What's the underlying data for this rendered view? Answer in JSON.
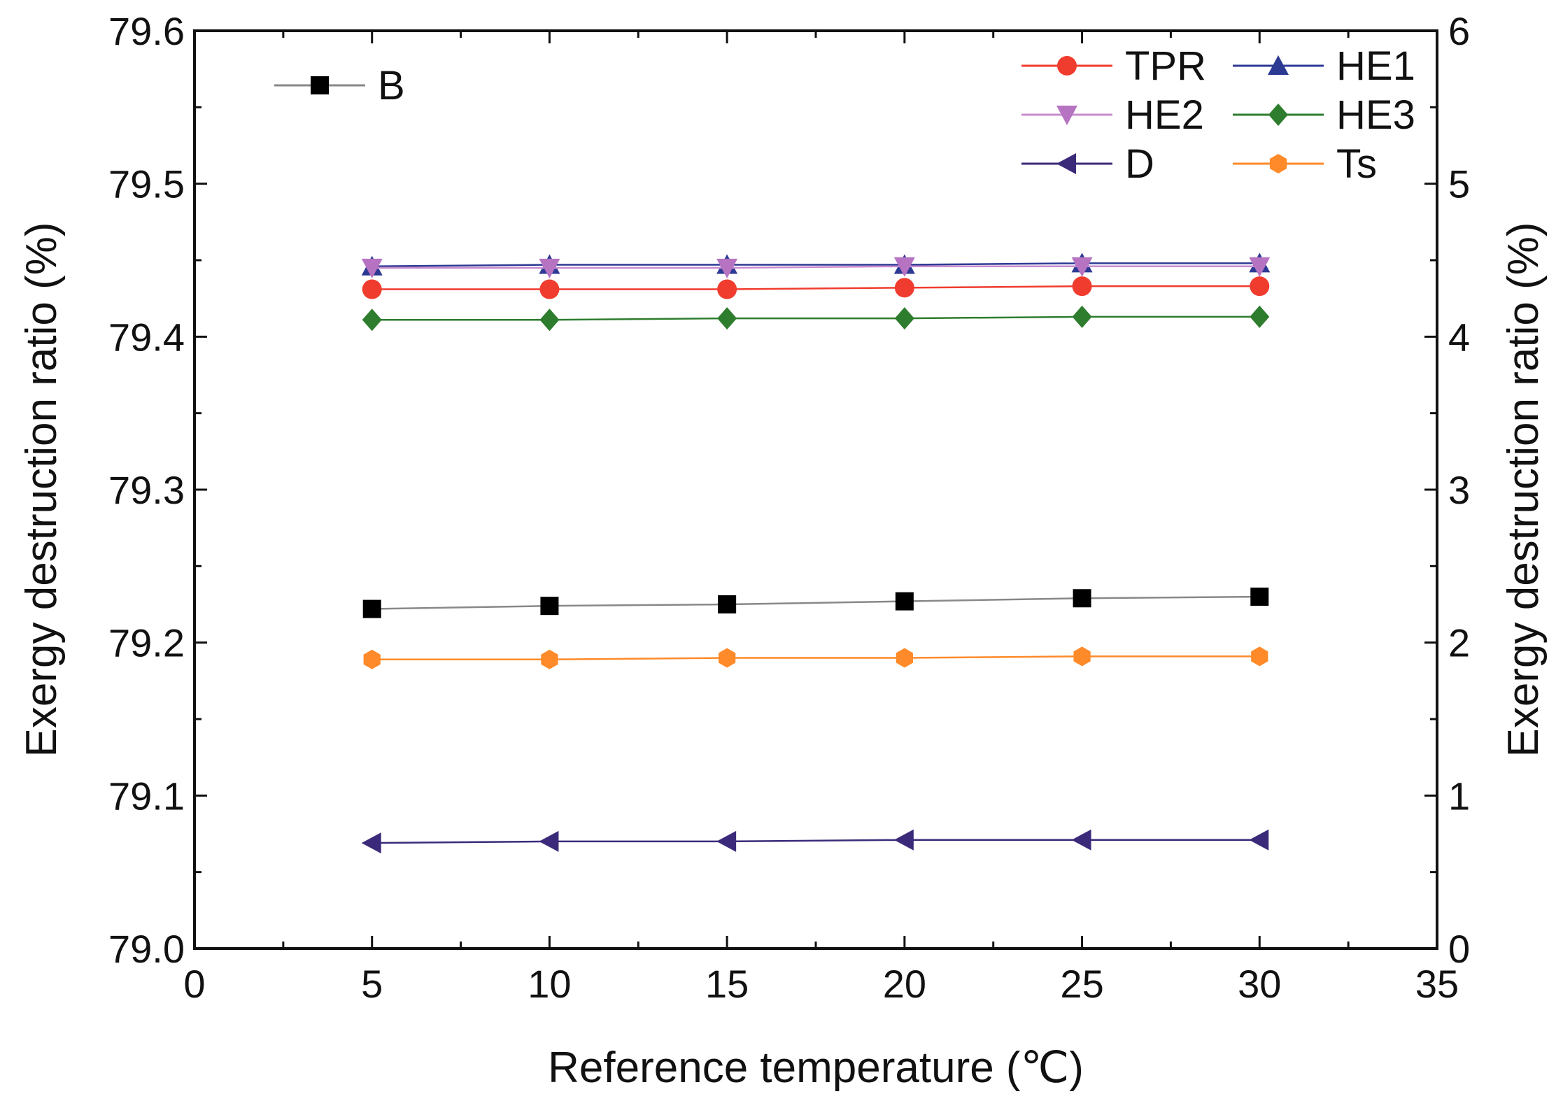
{
  "chart_data": {
    "type": "line",
    "xlabel": "Reference temperature (℃)",
    "ylabel_left": "Exergy destruction ratio (%)",
    "ylabel_right": "Exergy destruction ratio (%)",
    "x_axis": {
      "min": 0,
      "max": 35,
      "ticks": [
        0,
        5,
        10,
        15,
        20,
        25,
        30,
        35
      ],
      "labels": [
        "0",
        "5",
        "10",
        "15",
        "20",
        "25",
        "30",
        "35"
      ]
    },
    "y_left_axis": {
      "min": 79.0,
      "max": 79.6,
      "ticks": [
        79.0,
        79.1,
        79.2,
        79.3,
        79.4,
        79.5,
        79.6
      ],
      "labels": [
        "79.0",
        "79.1",
        "79.2",
        "79.3",
        "79.4",
        "79.5",
        "79.6"
      ]
    },
    "y_right_axis": {
      "min": 0,
      "max": 6,
      "ticks": [
        0,
        1,
        2,
        3,
        4,
        5,
        6
      ],
      "labels": [
        "0",
        "1",
        "2",
        "3",
        "4",
        "5",
        "6"
      ]
    },
    "x": [
      5,
      10,
      15,
      20,
      25,
      30
    ],
    "series": [
      {
        "name": "B",
        "axis": "left",
        "color": "#888888",
        "marker_color": "#000000",
        "marker": "square",
        "values": [
          79.222,
          79.224,
          79.225,
          79.227,
          79.229,
          79.23
        ]
      },
      {
        "name": "TPR",
        "axis": "right",
        "color": "#f03c2e",
        "marker_color": "#f03c2e",
        "marker": "circle",
        "values": [
          4.31,
          4.31,
          4.31,
          4.32,
          4.33,
          4.33
        ]
      },
      {
        "name": "HE1",
        "axis": "right",
        "color": "#2d3a94",
        "marker_color": "#2d3a94",
        "marker": "triangle-up",
        "values": [
          4.46,
          4.47,
          4.47,
          4.47,
          4.48,
          4.48
        ]
      },
      {
        "name": "HE2",
        "axis": "right",
        "color": "#c98bcf",
        "marker_color": "#b673c2",
        "marker": "triangle-down",
        "values": [
          4.45,
          4.45,
          4.45,
          4.46,
          4.46,
          4.46
        ]
      },
      {
        "name": "HE3",
        "axis": "right",
        "color": "#2e7d2e",
        "marker_color": "#2e7d2e",
        "marker": "diamond",
        "values": [
          4.11,
          4.11,
          4.12,
          4.12,
          4.13,
          4.13
        ]
      },
      {
        "name": "D",
        "axis": "right",
        "color": "#3b2a7a",
        "marker_color": "#3b2a7a",
        "marker": "triangle-left",
        "values": [
          0.69,
          0.7,
          0.7,
          0.71,
          0.71,
          0.71
        ]
      },
      {
        "name": "Ts",
        "axis": "right",
        "color": "#ff8a2a",
        "marker_color": "#ff8a2a",
        "marker": "hexagon",
        "values": [
          1.89,
          1.89,
          1.9,
          1.9,
          1.91,
          1.91
        ]
      }
    ],
    "legend_left": [
      "B"
    ],
    "legend_right": [
      "TPR",
      "HE1",
      "HE2",
      "HE3",
      "D",
      "Ts"
    ]
  }
}
